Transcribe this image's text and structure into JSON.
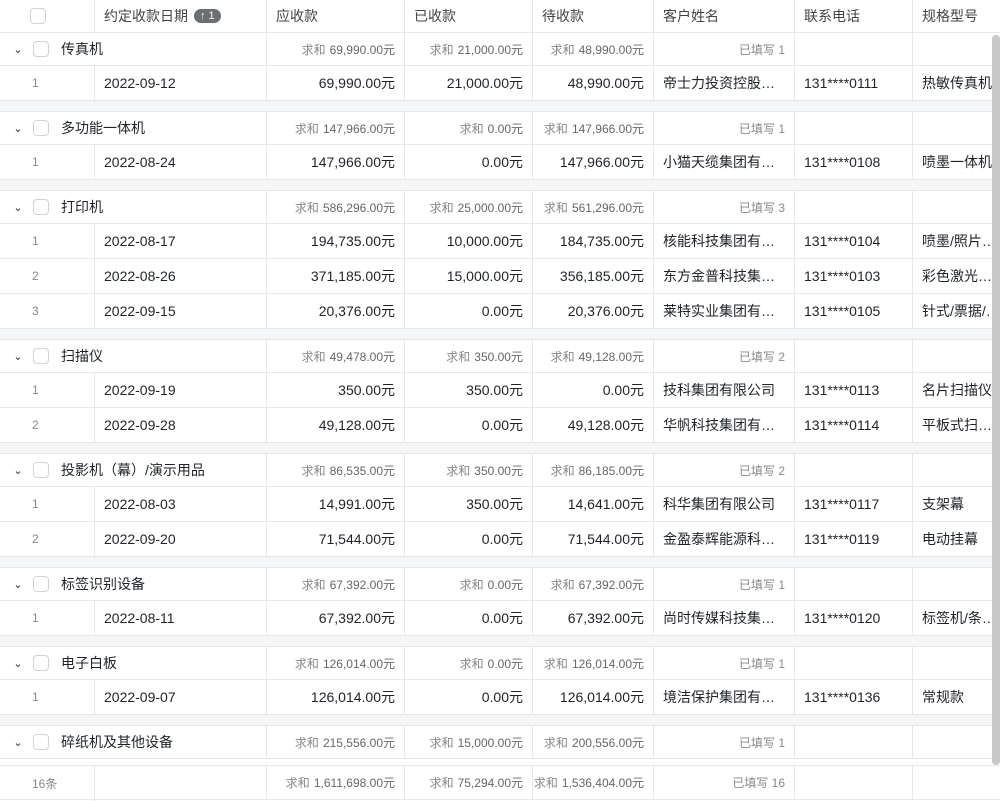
{
  "header": {
    "date": "约定收款日期",
    "sort_badge": "↑ 1",
    "due": "应收款",
    "received": "已收款",
    "pending": "待收款",
    "customer": "客户姓名",
    "phone": "联系电话",
    "model": "规格型号"
  },
  "groups": [
    {
      "name": "传真机",
      "due": "69,990.00元",
      "received": "21,000.00元",
      "pending": "48,990.00元",
      "filled": "已填写 1",
      "rows": [
        [
          "1",
          "2022-09-12",
          "69,990.00元",
          "21,000.00元",
          "48,990.00元",
          "帝士力投资控股集团有限公司",
          "131****0111",
          "热敏传真机"
        ]
      ]
    },
    {
      "name": "多功能一体机",
      "due": "147,966.00元",
      "received": "0.00元",
      "pending": "147,966.00元",
      "filled": "已填写 1",
      "rows": [
        [
          "1",
          "2022-08-24",
          "147,966.00元",
          "0.00元",
          "147,966.00元",
          "小猫天缆集团有限公司",
          "131****0108",
          "喷墨一体机"
        ]
      ]
    },
    {
      "name": "打印机",
      "due": "586,296.00元",
      "received": "25,000.00元",
      "pending": "561,296.00元",
      "filled": "已填写 3",
      "rows": [
        [
          "1",
          "2022-08-17",
          "194,735.00元",
          "10,000.00元",
          "184,735.00元",
          "核能科技集团有限公司",
          "131****0104",
          "喷墨/照片打印机"
        ],
        [
          "2",
          "2022-08-26",
          "371,185.00元",
          "15,000.00元",
          "356,185.00元",
          "东方金普科技集团有限公司",
          "131****0103",
          "彩色激光打印机"
        ],
        [
          "3",
          "2022-09-15",
          "20,376.00元",
          "0.00元",
          "20,376.00元",
          "莱特实业集团有限公司",
          "131****0105",
          "针式/票据/标签"
        ]
      ]
    },
    {
      "name": "扫描仪",
      "due": "49,478.00元",
      "received": "350.00元",
      "pending": "49,128.00元",
      "filled": "已填写 2",
      "rows": [
        [
          "1",
          "2022-09-19",
          "350.00元",
          "350.00元",
          "0.00元",
          "技科集团有限公司",
          "131****0113",
          "名片扫描仪"
        ],
        [
          "2",
          "2022-09-28",
          "49,128.00元",
          "0.00元",
          "49,128.00元",
          "华帆科技集团有限公司",
          "131****0114",
          "平板式扫描仪"
        ]
      ]
    },
    {
      "name": "投影机（幕）/演示用品",
      "due": "86,535.00元",
      "received": "350.00元",
      "pending": "86,185.00元",
      "filled": "已填写 2",
      "rows": [
        [
          "1",
          "2022-08-03",
          "14,991.00元",
          "350.00元",
          "14,641.00元",
          "科华集团有限公司",
          "131****0117",
          "支架幕"
        ],
        [
          "2",
          "2022-09-20",
          "71,544.00元",
          "0.00元",
          "71,544.00元",
          "金盈泰辉能源科技有限公司",
          "131****0119",
          "电动挂幕"
        ]
      ]
    },
    {
      "name": "标签识别设备",
      "due": "67,392.00元",
      "received": "0.00元",
      "pending": "67,392.00元",
      "filled": "已填写 1",
      "rows": [
        [
          "1",
          "2022-08-11",
          "67,392.00元",
          "0.00元",
          "67,392.00元",
          "尚时传媒科技集团有限公司",
          "131****0120",
          "标签机/条码机"
        ]
      ]
    },
    {
      "name": "电子白板",
      "due": "126,014.00元",
      "received": "0.00元",
      "pending": "126,014.00元",
      "filled": "已填写 1",
      "rows": [
        [
          "1",
          "2022-09-07",
          "126,014.00元",
          "0.00元",
          "126,014.00元",
          "境洁保护集团有限公司",
          "131****0136",
          "常规款"
        ]
      ]
    },
    {
      "name": "碎纸机及其他设备",
      "due": "215,556.00元",
      "received": "15,000.00元",
      "pending": "200,556.00元",
      "filled": "已填写 1",
      "rows": []
    }
  ],
  "sum_label": "求和",
  "footer": {
    "count": "16条",
    "due": "1,611,698.00元",
    "received": "75,294.00元",
    "pending": "1,536,404.00元",
    "filled": "已填写 16"
  }
}
